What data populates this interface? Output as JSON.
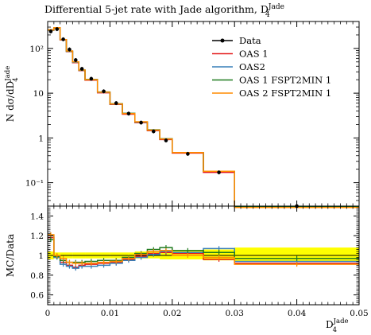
{
  "chart_data": [
    {
      "type": "line",
      "panel": "main",
      "title": "Differential 5-jet rate with Jade algorithm, D",
      "title_sub": "4",
      "title_sup": "Jade",
      "ylabel": "N dσ/dD",
      "ylabel_sub": "4",
      "ylabel_sup": "Jade",
      "yscale": "log",
      "xlim": [
        0,
        0.05
      ],
      "ylim": [
        0.03,
        400
      ],
      "ytick_labels": [
        "10²",
        "10",
        "1",
        "10⁻¹"
      ],
      "legend_position": "top-right",
      "bin_edges": [
        0,
        0.001,
        0.002,
        0.003,
        0.004,
        0.005,
        0.006,
        0.008,
        0.01,
        0.012,
        0.014,
        0.016,
        0.018,
        0.02,
        0.025,
        0.03,
        0.05
      ],
      "data_points": {
        "name": "Data",
        "x": [
          0.0005,
          0.0015,
          0.0025,
          0.0035,
          0.0045,
          0.0055,
          0.007,
          0.009,
          0.011,
          0.013,
          0.015,
          0.017,
          0.019,
          0.0225,
          0.0275,
          0.04
        ],
        "y": [
          240,
          270,
          160,
          95,
          55,
          35,
          21,
          11,
          6.0,
          3.5,
          2.2,
          1.4,
          0.88,
          0.44,
          0.17,
          0.03
        ]
      },
      "series": [
        {
          "name": "OAS 1",
          "color": "#e41a1c",
          "values": [
            255,
            285,
            155,
            85,
            48,
            32,
            19.5,
            10.2,
            5.6,
            3.4,
            2.2,
            1.45,
            0.92,
            0.46,
            0.17,
            0.028
          ]
        },
        {
          "name": "OAS2",
          "color": "#377eb8",
          "values": [
            260,
            290,
            157,
            86,
            49,
            32.5,
            20,
            10.4,
            5.7,
            3.5,
            2.25,
            1.5,
            0.95,
            0.47,
            0.18,
            0.029
          ]
        },
        {
          "name": "OAS 1 FSPT2MIN 1",
          "color": "#1f7a1f",
          "values": [
            258,
            288,
            158,
            87,
            50,
            33,
            20.2,
            10.6,
            5.8,
            3.55,
            2.28,
            1.52,
            0.96,
            0.47,
            0.18,
            0.029
          ]
        },
        {
          "name": "OAS 2 FSPT2MIN 1",
          "color": "#ff8c00",
          "values": [
            262,
            292,
            158,
            88,
            50,
            33,
            20,
            10.5,
            5.75,
            3.5,
            2.3,
            1.5,
            0.95,
            0.47,
            0.18,
            0.028
          ]
        }
      ]
    },
    {
      "type": "line",
      "panel": "ratio",
      "ylabel": "MC/Data",
      "xlabel": "D",
      "xlabel_sub": "4",
      "xlabel_sup": "Jade",
      "xlim": [
        0,
        0.05
      ],
      "ylim": [
        0.5,
        1.5
      ],
      "xtick_labels": [
        "0",
        "0.01",
        "0.02",
        "0.03",
        "0.04",
        "0.05"
      ],
      "ytick_labels": [
        "0.6",
        "0.8",
        "1",
        "1.2",
        "1.4"
      ],
      "band_color": "#ffff00",
      "band": {
        "bin_edges": [
          0,
          0.001,
          0.002,
          0.004,
          0.006,
          0.01,
          0.014,
          0.018,
          0.025,
          0.03,
          0.05
        ],
        "lower": [
          0.96,
          0.97,
          0.97,
          0.97,
          0.97,
          0.97,
          0.97,
          0.96,
          0.95,
          0.94
        ],
        "upper": [
          1.04,
          1.03,
          1.03,
          1.03,
          1.03,
          1.03,
          1.04,
          1.05,
          1.06,
          1.08
        ]
      },
      "bin_edges": [
        0,
        0.001,
        0.002,
        0.003,
        0.004,
        0.005,
        0.006,
        0.008,
        0.01,
        0.012,
        0.014,
        0.016,
        0.018,
        0.02,
        0.025,
        0.03,
        0.05
      ],
      "series": [
        {
          "name": "OAS 1",
          "color": "#e41a1c",
          "values": [
            1.18,
            0.99,
            0.93,
            0.9,
            0.88,
            0.9,
            0.91,
            0.92,
            0.93,
            0.96,
            0.99,
            1.02,
            1.03,
            1.02,
            0.96,
            0.92
          ]
        },
        {
          "name": "OAS2",
          "color": "#377eb8",
          "values": [
            1.2,
            0.98,
            0.91,
            0.89,
            0.87,
            0.89,
            0.89,
            0.9,
            0.92,
            0.95,
            0.98,
            1.01,
            1.04,
            1.03,
            1.07,
            0.94
          ]
        },
        {
          "name": "OAS 1 FSPT2MIN 1",
          "color": "#1f7a1f",
          "values": [
            1.16,
            0.99,
            0.95,
            0.93,
            0.93,
            0.93,
            0.94,
            0.95,
            0.95,
            0.98,
            1.02,
            1.06,
            1.08,
            1.05,
            1.03,
            0.97
          ]
        },
        {
          "name": "OAS 2 FSPT2MIN 1",
          "color": "#ff8c00",
          "values": [
            1.21,
            1.0,
            0.97,
            0.93,
            0.92,
            0.92,
            0.92,
            0.93,
            0.94,
            0.97,
            1.01,
            1.04,
            1.05,
            1.0,
            0.98,
            0.91
          ]
        }
      ]
    }
  ]
}
